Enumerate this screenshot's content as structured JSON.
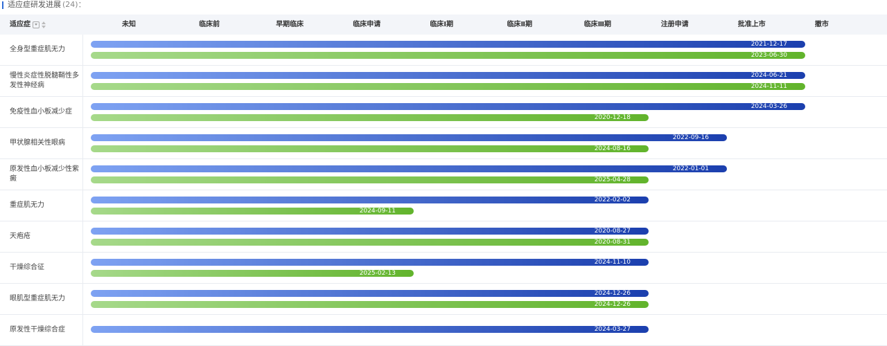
{
  "section": {
    "title": "适应症研发进展",
    "count": "(24)："
  },
  "header": {
    "indication_label": "适应症",
    "stages": [
      "未知",
      "临床前",
      "早期临床",
      "临床申请",
      "临床Ⅰ期",
      "临床Ⅱ期",
      "临床Ⅲ期",
      "注册申请",
      "批准上市",
      "撤市"
    ]
  },
  "colors": {
    "blue_start": "#7ea2f2",
    "blue_end": "#1b3fae",
    "green_start": "#a6d98a",
    "green_end": "#62b42c"
  },
  "rows": [
    {
      "name": "全身型重症肌无力",
      "blue": {
        "stage_index": 9,
        "date": "2021-12-17"
      },
      "green": {
        "stage_index": 9,
        "date": "2023-06-30"
      }
    },
    {
      "name": "慢性炎症性脱髓鞘性多发性神经病",
      "blue": {
        "stage_index": 9,
        "date": "2024-06-21"
      },
      "green": {
        "stage_index": 9,
        "date": "2024-11-11"
      }
    },
    {
      "name": "免疫性血小板减少症",
      "blue": {
        "stage_index": 9,
        "date": "2024-03-26"
      },
      "green": {
        "stage_index": 7,
        "date": "2020-12-18"
      }
    },
    {
      "name": "甲状腺相关性眼病",
      "blue": {
        "stage_index": 8,
        "date": "2022-09-16"
      },
      "green": {
        "stage_index": 7,
        "date": "2024-08-16"
      }
    },
    {
      "name": "原发性血小板减少性紫癜",
      "blue": {
        "stage_index": 8,
        "date": "2022-01-01"
      },
      "green": {
        "stage_index": 7,
        "date": "2025-04-28"
      }
    },
    {
      "name": "重症肌无力",
      "blue": {
        "stage_index": 7,
        "date": "2022-02-02"
      },
      "green": {
        "stage_index": 4,
        "date": "2024-09-11"
      }
    },
    {
      "name": "天疱疮",
      "blue": {
        "stage_index": 7,
        "date": "2020-08-27"
      },
      "green": {
        "stage_index": 7,
        "date": "2020-08-31"
      }
    },
    {
      "name": "干燥综合征",
      "blue": {
        "stage_index": 7,
        "date": "2024-11-10"
      },
      "green": {
        "stage_index": 4,
        "date": "2025-02-13"
      }
    },
    {
      "name": "眼肌型重症肌无力",
      "blue": {
        "stage_index": 7,
        "date": "2024-12-26"
      },
      "green": {
        "stage_index": 7,
        "date": "2024-12-26"
      }
    },
    {
      "name": "原发性干燥综合症",
      "blue": {
        "stage_index": 7,
        "date": "2024-03-27"
      }
    }
  ]
}
